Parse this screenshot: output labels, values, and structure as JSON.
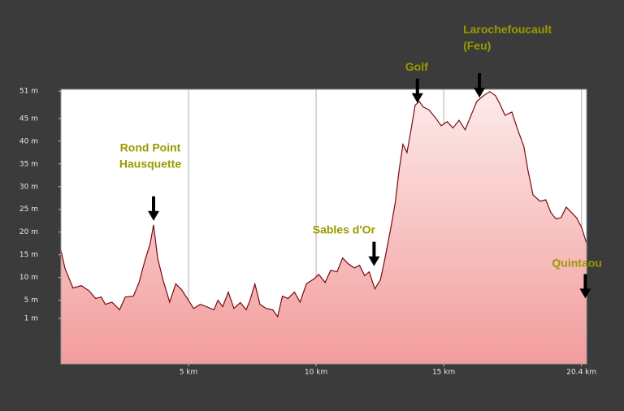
{
  "chart_data": {
    "type": "area",
    "x": [
      0,
      0.16,
      0.47,
      0.8,
      1.1,
      1.36,
      1.58,
      1.74,
      2.0,
      2.3,
      2.52,
      2.84,
      3.06,
      3.3,
      3.5,
      3.63,
      3.79,
      4.0,
      4.26,
      4.5,
      4.73,
      4.95,
      5.2,
      5.46,
      5.7,
      6.0,
      6.15,
      6.34,
      6.56,
      6.78,
      7.03,
      7.26,
      7.41,
      7.6,
      7.8,
      8.04,
      8.3,
      8.49,
      8.68,
      8.9,
      9.15,
      9.37,
      9.62,
      9.94,
      10.1,
      10.35,
      10.57,
      10.82,
      11.04,
      11.26,
      11.5,
      11.7,
      11.9,
      12.08,
      12.3,
      12.52,
      12.7,
      12.93,
      13.1,
      13.25,
      13.4,
      13.56,
      13.72,
      13.88,
      14.04,
      14.2,
      14.42,
      14.67,
      14.9,
      15.14,
      15.36,
      15.6,
      15.84,
      16.1,
      16.3,
      16.56,
      16.8,
      17.03,
      17.2,
      17.4,
      17.67,
      17.9,
      18.14,
      18.3,
      18.5,
      18.77,
      19.0,
      19.2,
      19.4,
      19.6,
      19.8,
      20.2,
      20.4,
      20.6
    ],
    "values": [
      16,
      12,
      7.7,
      8.2,
      7.1,
      5.4,
      5.7,
      4.1,
      4.6,
      2.9,
      5.7,
      5.9,
      8.9,
      13.9,
      17.5,
      21.6,
      14.3,
      9.5,
      4.6,
      8.6,
      7.3,
      5.4,
      3.2,
      4.1,
      3.6,
      2.9,
      5.0,
      3.6,
      6.8,
      3.2,
      4.5,
      2.9,
      5.0,
      8.6,
      4.1,
      3.2,
      2.9,
      1.4,
      5.9,
      5.4,
      6.8,
      4.6,
      8.6,
      9.8,
      10.7,
      8.9,
      11.6,
      11.25,
      14.3,
      13.0,
      12.1,
      12.7,
      10.4,
      11.25,
      7.5,
      9.5,
      14.3,
      21,
      26.4,
      33.6,
      39.3,
      37.5,
      42.5,
      47.9,
      48.75,
      47.5,
      46.9,
      45.2,
      43.4,
      44.3,
      42.9,
      44.6,
      42.5,
      46.1,
      48.75,
      50,
      50.9,
      50,
      48.2,
      45.7,
      46.4,
      42.5,
      38.9,
      33.6,
      28.2,
      26.8,
      27.1,
      24.3,
      22.9,
      23.2,
      25.5,
      23.2,
      21.1,
      17.5
    ],
    "color": "#7a0a0a",
    "fill_top": "#fdeaea",
    "fill_bottom": "#f39c9c",
    "xlim": [
      0,
      20.6
    ],
    "ylim": [
      -9,
      51.4
    ],
    "xticks": [
      {
        "value": 5,
        "label": "5 km"
      },
      {
        "value": 10,
        "label": "10 km"
      },
      {
        "value": 15,
        "label": "15 km"
      },
      {
        "value": 20.4,
        "label": "20.4 km"
      }
    ],
    "yticks": [
      {
        "value": 51,
        "label": "51 m"
      },
      {
        "value": 45,
        "label": "45 m"
      },
      {
        "value": 40,
        "label": "40 m"
      },
      {
        "value": 35,
        "label": "35 m"
      },
      {
        "value": 30,
        "label": "30 m"
      },
      {
        "value": 25,
        "label": "25 m"
      },
      {
        "value": 20,
        "label": "20 m"
      },
      {
        "value": 15,
        "label": "15 m"
      },
      {
        "value": 10,
        "label": "10 m"
      },
      {
        "value": 5,
        "label": "5 m"
      },
      {
        "value": 1,
        "label": "1 m"
      }
    ],
    "annotation_color": "#9a9a00",
    "annotations": [
      {
        "lines": [
          "Rond Point",
          "Hausquette"
        ],
        "x": 3.63,
        "y": 22.5
      },
      {
        "lines": [
          "Sables d'Or"
        ],
        "x": 12.27,
        "y": 12.5
      },
      {
        "lines": [
          "Golf"
        ],
        "x": 13.97,
        "y": 48.4
      },
      {
        "lines": [
          "Larochefoucault",
          "(Feu)"
        ],
        "x": 16.4,
        "y": 49.6
      },
      {
        "lines": [
          "Quintaou"
        ],
        "x": 20.55,
        "y": 5.4
      }
    ]
  }
}
